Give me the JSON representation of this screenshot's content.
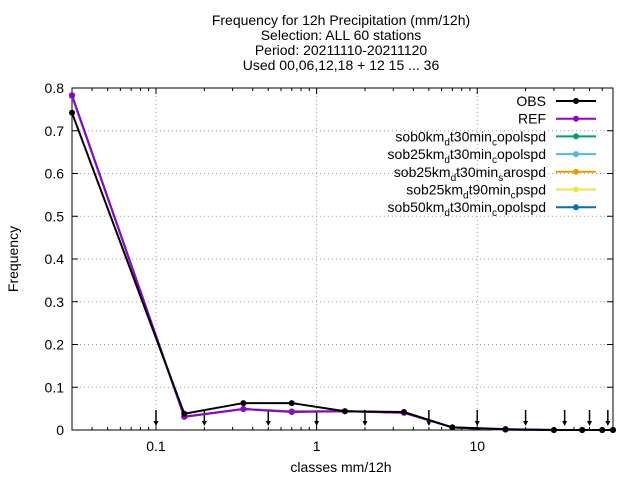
{
  "chart_data": {
    "type": "line",
    "title_lines": [
      "Frequency  for 12h Precipitation (mm/12h)",
      "Selection: ALL     60 stations",
      "Period: 20211110-20211120",
      "Used 00,06,12,18 + 12 15 ... 36"
    ],
    "xlabel": "classes mm/12h",
    "ylabel": "Frequency",
    "xscale": "log",
    "xlim": [
      0.03,
      70
    ],
    "ylim": [
      0,
      0.8
    ],
    "grid": true,
    "legend_position": "top-right",
    "x_ticks": [
      {
        "value": 0.1,
        "label": "0.1"
      },
      {
        "value": 1,
        "label": "1"
      },
      {
        "value": 10,
        "label": "10"
      }
    ],
    "y_ticks": [
      {
        "value": 0,
        "label": "0"
      },
      {
        "value": 0.1,
        "label": "0.1"
      },
      {
        "value": 0.2,
        "label": "0.2"
      },
      {
        "value": 0.3,
        "label": "0.3"
      },
      {
        "value": 0.4,
        "label": "0.4"
      },
      {
        "value": 0.5,
        "label": "0.5"
      },
      {
        "value": 0.6,
        "label": "0.6"
      },
      {
        "value": 0.7,
        "label": "0.7"
      },
      {
        "value": 0.8,
        "label": "0.8"
      }
    ],
    "x": [
      0.03,
      0.15,
      0.35,
      0.7,
      1.5,
      3.5,
      7,
      15,
      30,
      45,
      60,
      70
    ],
    "series": [
      {
        "name": "OBS",
        "legend_parts": [
          {
            "t": "OBS"
          }
        ],
        "color": "#000000",
        "marker": "circle",
        "values": [
          0.742,
          0.038,
          0.063,
          0.063,
          0.044,
          0.042,
          0.006,
          0.002,
          0.0,
          0.0,
          0.0,
          0.0
        ]
      },
      {
        "name": "REF",
        "legend_parts": [
          {
            "t": "REF"
          }
        ],
        "color": "#9400d3",
        "marker": "circle",
        "values": [
          0.783,
          0.031,
          0.049,
          0.042,
          0.044,
          0.04,
          0.006,
          0.001,
          0.0,
          0.0,
          0.0,
          0.0
        ]
      },
      {
        "name": "sob0kmdt30mincopolspd",
        "legend_parts": [
          {
            "t": "sob0km"
          },
          {
            "t": "d",
            "sub": true
          },
          {
            "t": "t30min"
          },
          {
            "t": "c",
            "sub": true
          },
          {
            "t": "opolspd"
          }
        ],
        "color": "#009e73",
        "marker": "circle",
        "values": [
          0.782,
          0.031,
          0.049,
          0.043,
          0.044,
          0.041,
          0.006,
          0.001,
          0.0,
          0.0,
          0.0,
          0.0
        ]
      },
      {
        "name": "sob25kmdt30mincopolspd",
        "legend_parts": [
          {
            "t": "sob25km"
          },
          {
            "t": "d",
            "sub": true
          },
          {
            "t": "t30min"
          },
          {
            "t": "c",
            "sub": true
          },
          {
            "t": "opolspd"
          }
        ],
        "color": "#56b4e9",
        "marker": "circle",
        "values": [
          0.781,
          0.031,
          0.049,
          0.043,
          0.044,
          0.041,
          0.006,
          0.001,
          0.0,
          0.0,
          0.0,
          0.0
        ]
      },
      {
        "name": "sob25kmdt30minsarospd",
        "legend_parts": [
          {
            "t": "sob25km"
          },
          {
            "t": "d",
            "sub": true
          },
          {
            "t": "t30min"
          },
          {
            "t": "s",
            "sub": true
          },
          {
            "t": "arospd"
          }
        ],
        "color": "#e69f00",
        "marker": "circle",
        "values": [
          0.781,
          0.031,
          0.049,
          0.043,
          0.044,
          0.041,
          0.006,
          0.001,
          0.0,
          0.0,
          0.0,
          0.0
        ]
      },
      {
        "name": "sob25kmdt90mincpspd",
        "legend_parts": [
          {
            "t": "sob25km"
          },
          {
            "t": "d",
            "sub": true
          },
          {
            "t": "t90min"
          },
          {
            "t": "c",
            "sub": true
          },
          {
            "t": "pspd"
          }
        ],
        "color": "#f0e442",
        "marker": "circle",
        "values": [
          0.781,
          0.031,
          0.049,
          0.044,
          0.044,
          0.041,
          0.006,
          0.001,
          0.0,
          0.0,
          0.0,
          0.0
        ]
      },
      {
        "name": "sob50kmdt30mincopolspd",
        "legend_parts": [
          {
            "t": "sob50km"
          },
          {
            "t": "d",
            "sub": true
          },
          {
            "t": "t30min"
          },
          {
            "t": "c",
            "sub": true
          },
          {
            "t": "opolspd"
          }
        ],
        "color": "#0072b2",
        "marker": "circle",
        "values": [
          0.783,
          0.031,
          0.049,
          0.044,
          0.044,
          0.041,
          0.006,
          0.001,
          0.0,
          0.0,
          0.0,
          0.0
        ]
      }
    ],
    "obs_arrows_x": [
      0.1,
      0.2,
      0.5,
      1,
      2,
      5,
      10,
      20,
      35,
      50,
      65
    ]
  }
}
